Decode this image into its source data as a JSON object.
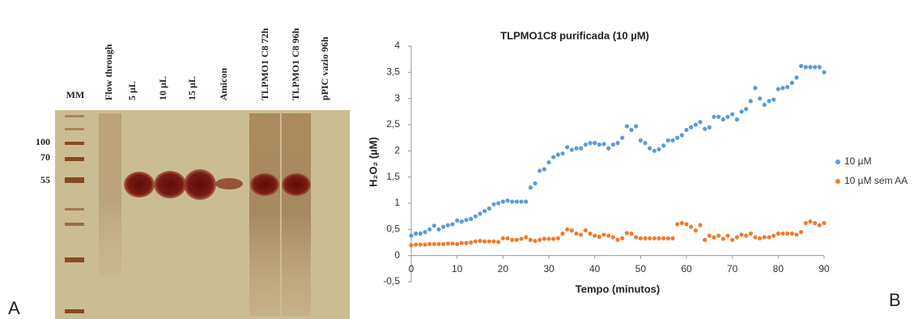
{
  "gel": {
    "panel_label": "A",
    "lanes": [
      "MM",
      "Flow through",
      "5 µL",
      "10 µL",
      "15 µL",
      "Amicon",
      "TLPMO1 C8 72h",
      "TLPMO1 C8 96h",
      "pPIC vazio 96h"
    ],
    "markers": [
      "100",
      "70",
      "55"
    ]
  },
  "chart_data": {
    "type": "scatter",
    "panel_label": "B",
    "title": "TLPMO1C8 purificada (10 µM)",
    "x_label": "Tempo (minutos)",
    "y_label": "H₂O₂ (µM)",
    "x": [
      0,
      1,
      2,
      3,
      4,
      5,
      6,
      7,
      8,
      9,
      10,
      11,
      12,
      13,
      14,
      15,
      16,
      17,
      18,
      19,
      20,
      21,
      22,
      23,
      24,
      25,
      26,
      27,
      28,
      29,
      30,
      31,
      32,
      33,
      34,
      35,
      36,
      37,
      38,
      39,
      40,
      41,
      42,
      43,
      44,
      45,
      46,
      47,
      48,
      49,
      50,
      51,
      52,
      53,
      54,
      55,
      56,
      57,
      58,
      59,
      60,
      61,
      62,
      63,
      64,
      65,
      66,
      67,
      68,
      69,
      70,
      71,
      72,
      73,
      74,
      75,
      76,
      77,
      78,
      79,
      80,
      81,
      82,
      83,
      84,
      85,
      86,
      87,
      88,
      89,
      90
    ],
    "series": [
      {
        "name": "10 µM",
        "color": "#5b9bd5",
        "values": [
          0.38,
          0.42,
          0.42,
          0.45,
          0.5,
          0.57,
          0.5,
          0.55,
          0.58,
          0.6,
          0.67,
          0.65,
          0.68,
          0.7,
          0.75,
          0.8,
          0.85,
          0.9,
          0.98,
          1.0,
          1.03,
          1.05,
          1.03,
          1.03,
          1.03,
          1.03,
          1.3,
          1.38,
          1.62,
          1.65,
          1.78,
          1.88,
          1.93,
          1.95,
          2.07,
          2.02,
          2.05,
          2.05,
          2.12,
          2.15,
          2.15,
          2.12,
          2.13,
          2.05,
          2.12,
          2.15,
          2.25,
          2.47,
          2.4,
          2.47,
          2.2,
          2.15,
          2.05,
          2.0,
          2.03,
          2.1,
          2.2,
          2.2,
          2.25,
          2.3,
          2.4,
          2.45,
          2.5,
          2.55,
          2.42,
          2.45,
          2.65,
          2.65,
          2.6,
          2.65,
          2.7,
          2.6,
          2.75,
          2.8,
          2.95,
          3.2,
          3.0,
          2.88,
          2.95,
          2.98,
          3.18,
          3.2,
          3.22,
          3.3,
          3.4,
          3.62,
          3.6,
          3.6,
          3.6,
          3.6,
          3.5
        ]
      },
      {
        "name": "10 µM sem AA",
        "color": "#ed7d31",
        "values": [
          0.2,
          0.21,
          0.21,
          0.21,
          0.22,
          0.22,
          0.22,
          0.22,
          0.23,
          0.23,
          0.22,
          0.24,
          0.24,
          0.25,
          0.27,
          0.28,
          0.27,
          0.27,
          0.27,
          0.26,
          0.33,
          0.33,
          0.3,
          0.3,
          0.32,
          0.35,
          0.3,
          0.28,
          0.3,
          0.32,
          0.32,
          0.32,
          0.33,
          0.42,
          0.5,
          0.48,
          0.42,
          0.4,
          0.48,
          0.42,
          0.38,
          0.36,
          0.4,
          0.38,
          0.35,
          0.3,
          0.33,
          0.43,
          0.42,
          0.35,
          0.33,
          0.33,
          0.33,
          0.33,
          0.33,
          0.33,
          0.33,
          0.33,
          0.6,
          0.62,
          0.6,
          0.55,
          0.48,
          0.58,
          0.3,
          0.38,
          0.35,
          0.38,
          0.32,
          0.38,
          0.3,
          0.35,
          0.4,
          0.38,
          0.42,
          0.35,
          0.33,
          0.35,
          0.35,
          0.38,
          0.42,
          0.42,
          0.42,
          0.42,
          0.4,
          0.45,
          0.62,
          0.65,
          0.62,
          0.58,
          0.62
        ]
      }
    ],
    "xlim": [
      0,
      90
    ],
    "xticks": [
      0,
      10,
      20,
      30,
      40,
      50,
      60,
      70,
      80,
      90
    ],
    "ylim": [
      -0.5,
      4
    ],
    "yticks": [
      {
        "value": -0.5,
        "label": "-0,5"
      },
      0,
      {
        "value": 0.5,
        "label": "0,5"
      },
      1,
      {
        "value": 1.5,
        "label": "1,5"
      },
      2,
      {
        "value": 2.5,
        "label": "2,5"
      },
      3,
      {
        "value": 3.5,
        "label": "3,5"
      },
      4
    ],
    "legend": "right"
  }
}
